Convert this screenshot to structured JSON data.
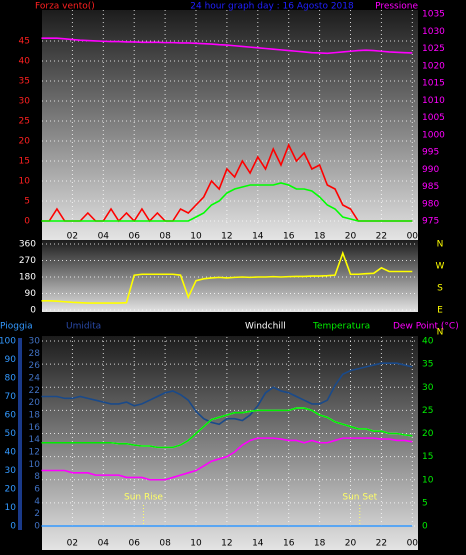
{
  "chart_data": [
    {
      "type": "line",
      "title": "24 hour graph day : 16 Agosto 2018",
      "ylabel": "Forza vento()",
      "y2label": "Pressione",
      "x": [
        0,
        0.5,
        1,
        1.5,
        2,
        2.5,
        3,
        3.5,
        4,
        4.5,
        5,
        5.5,
        6,
        6.5,
        7,
        7.5,
        8,
        8.5,
        9,
        9.5,
        10,
        10.5,
        11,
        11.5,
        12,
        12.5,
        13,
        13.5,
        14,
        14.5,
        15,
        15.5,
        16,
        16.5,
        17,
        17.5,
        18,
        18.5,
        19,
        19.5,
        20,
        20.5,
        21,
        21.5,
        22,
        22.5,
        23,
        23.5,
        24
      ],
      "xlim": [
        0,
        24
      ],
      "xticks": [
        {
          "value": 2,
          "label": "02"
        },
        {
          "value": 4,
          "label": "04"
        },
        {
          "value": 6,
          "label": "06"
        },
        {
          "value": 8,
          "label": "08"
        },
        {
          "value": 10,
          "label": "10"
        },
        12,
        14,
        16,
        18,
        20,
        22,
        {
          "value": 24,
          "label": "00"
        }
      ],
      "ylim": [
        0,
        51.75
      ],
      "yticks": [
        0,
        5,
        10,
        15,
        20,
        25,
        30,
        35,
        40,
        45
      ],
      "y2lim": [
        975,
        1035
      ],
      "y2ticks": [
        975,
        980,
        985,
        990,
        995,
        1000,
        1005,
        1010,
        1015,
        1020,
        1025,
        1030,
        1035
      ],
      "grid": true,
      "series": [
        {
          "color": "#ff0000",
          "values": [
            0,
            0,
            3,
            0,
            0,
            0,
            2,
            0,
            0,
            3,
            0,
            2,
            0,
            3,
            0,
            2,
            0,
            0,
            3,
            2,
            4,
            6,
            10,
            8,
            13,
            11,
            15,
            12,
            16,
            13,
            18,
            14,
            19,
            15,
            17,
            13,
            14,
            9,
            8,
            4,
            3,
            0,
            0,
            0,
            0,
            0,
            0,
            0,
            0
          ]
        },
        {
          "color": "#00ff00",
          "values": [
            0,
            0,
            0,
            0,
            0,
            0,
            0,
            0,
            0,
            0,
            0,
            0,
            0,
            0,
            0,
            0,
            0,
            0,
            0,
            0,
            1,
            2,
            4,
            5,
            7,
            8,
            8.5,
            9,
            9,
            9,
            9,
            9.5,
            9,
            8,
            8,
            7.5,
            6,
            4,
            3,
            1,
            0.5,
            0,
            0,
            0,
            0,
            0,
            0,
            0,
            0
          ]
        },
        {
          "color": "#ff00ff",
          "axis": "y2",
          "values": [
            1028,
            1028,
            1028,
            1027.8,
            1027.6,
            1027.4,
            1027.3,
            1027.2,
            1027.1,
            1027,
            1027,
            1026.9,
            1026.9,
            1026.8,
            1026.8,
            1026.8,
            1026.7,
            1026.7,
            1026.6,
            1026.6,
            1026.5,
            1026.4,
            1026.3,
            1026.1,
            1026,
            1025.8,
            1025.6,
            1025.4,
            1025.2,
            1025,
            1024.8,
            1024.6,
            1024.4,
            1024.2,
            1024,
            1023.8,
            1023.7,
            1023.6,
            1023.8,
            1024,
            1024.2,
            1024.4,
            1024.5,
            1024.4,
            1024.2,
            1024,
            1023.9,
            1023.8,
            1023.7
          ]
        }
      ]
    },
    {
      "type": "line",
      "x": [
        0,
        0.5,
        1,
        1.5,
        2,
        2.5,
        3,
        3.5,
        4,
        4.5,
        5,
        5.5,
        6,
        6.5,
        7,
        7.5,
        8,
        8.5,
        9,
        9.5,
        10,
        10.5,
        11,
        11.5,
        12,
        12.5,
        13,
        13.5,
        14,
        14.5,
        15,
        15.5,
        16,
        16.5,
        17,
        17.5,
        18,
        18.5,
        19,
        19.5,
        20,
        20.5,
        21,
        21.5,
        22,
        22.5,
        23,
        23.5,
        24
      ],
      "xlim": [
        0,
        24
      ],
      "ylim": [
        0,
        360
      ],
      "yticks": [
        0,
        90,
        180,
        270,
        360
      ],
      "compass": [
        "N",
        "W",
        "S",
        "E",
        "N"
      ],
      "grid": true,
      "series": [
        {
          "color": "#ffff00",
          "values": [
            50,
            50,
            48,
            45,
            42,
            40,
            38,
            38,
            38,
            38,
            38,
            40,
            190,
            195,
            195,
            195,
            195,
            195,
            190,
            70,
            160,
            170,
            175,
            178,
            175,
            178,
            180,
            178,
            180,
            180,
            182,
            180,
            182,
            183,
            183,
            185,
            185,
            187,
            190,
            310,
            195,
            195,
            198,
            200,
            230,
            210,
            210,
            210,
            210
          ]
        }
      ]
    },
    {
      "type": "line",
      "x": [
        0,
        0.5,
        1,
        1.5,
        2,
        2.5,
        3,
        3.5,
        4,
        4.5,
        5,
        5.5,
        6,
        6.5,
        7,
        7.5,
        8,
        8.5,
        9,
        9.5,
        10,
        10.5,
        11,
        11.5,
        12,
        12.5,
        13,
        13.5,
        14,
        14.5,
        15,
        15.5,
        16,
        16.5,
        17,
        17.5,
        18,
        18.5,
        19,
        19.5,
        20,
        20.5,
        21,
        21.5,
        22,
        22.5,
        23,
        23.5,
        24
      ],
      "xlim": [
        0,
        24
      ],
      "xticks": [
        {
          "value": 2,
          "label": "02"
        },
        {
          "value": 4,
          "label": "04"
        },
        {
          "value": 6,
          "label": "06"
        },
        {
          "value": 8,
          "label": "08"
        },
        {
          "value": 10,
          "label": "10"
        },
        12,
        14,
        16,
        18,
        20,
        22,
        {
          "value": 24,
          "label": "00"
        }
      ],
      "ylim": [
        0,
        100
      ],
      "yticks": [
        0,
        10,
        20,
        30,
        40,
        50,
        60,
        70,
        80,
        90,
        100
      ],
      "y3lim": [
        0,
        30
      ],
      "y3ticks": [
        0,
        2,
        4,
        6,
        8,
        10,
        12,
        14,
        16,
        18,
        20,
        22,
        24,
        26,
        28,
        30
      ],
      "y2lim": [
        0,
        40
      ],
      "y2ticks": [
        0,
        5,
        10,
        15,
        20,
        25,
        30,
        35,
        40
      ],
      "grid": true,
      "annotations": [
        {
          "text": "Sun Rise",
          "x": 6.6
        },
        {
          "text": "Sun Set",
          "x": 20.6
        }
      ],
      "series": [
        {
          "name": "Pioggia",
          "color": "#3399ff",
          "values": [
            0,
            0,
            0,
            0,
            0,
            0,
            0,
            0,
            0,
            0,
            0,
            0,
            0,
            0,
            0,
            0,
            0,
            0,
            0,
            0,
            0,
            0,
            0,
            0,
            0,
            0,
            0,
            0,
            0,
            0,
            0,
            0,
            0,
            0,
            0,
            0,
            0,
            0,
            0,
            0,
            0,
            0,
            0,
            0,
            0,
            0,
            0,
            0,
            0
          ]
        },
        {
          "name": "Umidita",
          "color": "#1a4a8a",
          "values": [
            70,
            70,
            70,
            69,
            69,
            70,
            69,
            68,
            67,
            66,
            66,
            67,
            65,
            66,
            68,
            70,
            72,
            73,
            71,
            68,
            62,
            58,
            56,
            55,
            58,
            58,
            57,
            60,
            65,
            72,
            75,
            73,
            72,
            70,
            68,
            66,
            66,
            68,
            76,
            82,
            84,
            85,
            86,
            87,
            88,
            88,
            88,
            87,
            86
          ]
        },
        {
          "name": "Windchill",
          "color": "#ffffff",
          "axis": "y2",
          "values": [
            18,
            18,
            18,
            18,
            18,
            18,
            18,
            18,
            18,
            18,
            17.8,
            17.8,
            17.5,
            17.3,
            17.3,
            17,
            17,
            17,
            17.5,
            18.5,
            20,
            21.5,
            23,
            23.5,
            24,
            24.5,
            24.5,
            24.8,
            25,
            25,
            25,
            25,
            25,
            25.5,
            25.5,
            25,
            24,
            23.5,
            22.5,
            22,
            21.5,
            21,
            21,
            20.5,
            20.5,
            20,
            20,
            19.7,
            19.5
          ]
        },
        {
          "name": "Temperatura",
          "color": "#00ee00",
          "axis": "y2",
          "values": [
            18,
            18,
            18,
            18,
            18,
            18,
            18,
            18,
            18,
            18,
            17.8,
            17.8,
            17.5,
            17.3,
            17.3,
            17,
            17,
            17,
            17.5,
            18.5,
            20,
            21.5,
            23,
            23.5,
            24,
            24.5,
            24.5,
            24.8,
            25,
            25,
            25,
            25,
            25,
            25.5,
            25.5,
            25,
            24,
            23.5,
            22.5,
            22,
            21.5,
            21,
            21,
            20.5,
            20.5,
            20,
            20,
            19.7,
            19.5
          ]
        },
        {
          "name": "Dew Point (°C)",
          "color": "#ff00ff",
          "axis": "y2",
          "values": [
            12,
            12,
            12,
            12,
            11.5,
            11.5,
            11.5,
            11,
            11,
            11,
            11,
            10.5,
            10.5,
            10.5,
            10,
            10,
            10,
            10.5,
            11,
            11.5,
            12,
            13,
            14,
            14.5,
            15,
            16,
            17.5,
            18.5,
            19,
            19,
            19,
            18.8,
            18.5,
            18.5,
            18,
            18.5,
            18,
            18,
            18.5,
            19,
            19,
            19,
            19,
            19,
            18.8,
            18.8,
            18.5,
            18.5,
            18.2
          ]
        }
      ]
    }
  ]
}
